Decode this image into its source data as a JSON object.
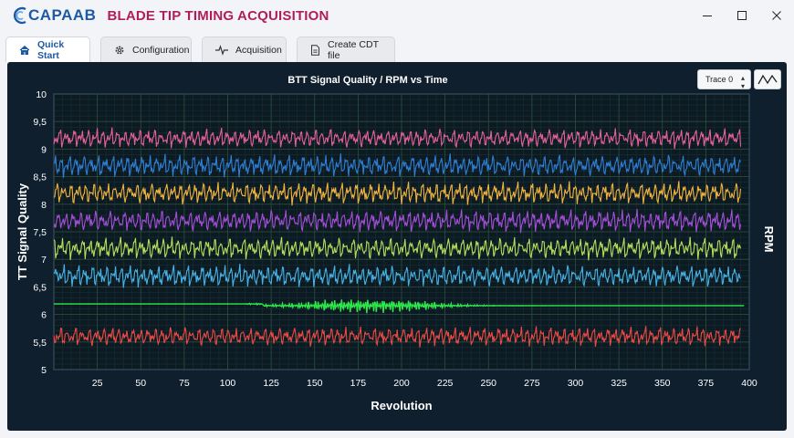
{
  "app": {
    "logo_text": "CAPAAB",
    "title": "BLADE TIP TIMING ACQUISITION"
  },
  "window_controls": [
    "minimize-icon",
    "maximize-icon",
    "close-icon"
  ],
  "tabs": [
    {
      "label": "Quick Start",
      "icon": "home-icon",
      "active": true
    },
    {
      "label": "Configuration",
      "icon": "gear-icon",
      "active": false
    },
    {
      "label": "Acquisition",
      "icon": "pulse-icon",
      "active": false
    },
    {
      "label": "Create CDT file",
      "icon": "file-icon",
      "active": false
    }
  ],
  "toolbar": {
    "trace_select_value": "Trace 0",
    "waveform_button_icon": "waveform-icon"
  },
  "colors": {
    "panel_bg": "#0f1f2e",
    "accent": "#1d5aa3",
    "title_accent": "#b01e5a"
  },
  "chart_data": {
    "type": "line",
    "title": "BTT Signal Quality / RPM vs Time",
    "xlabel": "Revolution",
    "ylabel": "TT Signal Quality",
    "y2label": "RPM",
    "xlim": [
      0,
      400
    ],
    "ylim": [
      5,
      10
    ],
    "xticks": [
      25,
      50,
      75,
      100,
      125,
      150,
      175,
      200,
      225,
      250,
      275,
      300,
      325,
      350,
      375,
      400
    ],
    "xtick_labels": [
      "25",
      "50",
      "75",
      "100",
      "125",
      "150",
      "175",
      "200",
      "225",
      "250",
      "275",
      "300",
      "325",
      "350",
      "375",
      "400"
    ],
    "yticks": [
      5,
      5.5,
      6,
      6.5,
      7,
      7.5,
      8,
      8.5,
      9,
      9.5,
      10
    ],
    "ytick_labels": [
      "5",
      "5,5",
      "6",
      "6,5",
      "7",
      "7,5",
      "8",
      "8,5",
      "9",
      "9,5",
      "10"
    ],
    "grid": true,
    "legend": "none",
    "series": [
      {
        "color": "#e8609a",
        "center": 9.2,
        "amplitude": 0.15,
        "x_end": 395
      },
      {
        "color": "#2e7fd6",
        "center": 8.7,
        "amplitude": 0.17,
        "x_end": 395
      },
      {
        "color": "#f2b43c",
        "center": 8.2,
        "amplitude": 0.17,
        "x_end": 395
      },
      {
        "color": "#a44fd8",
        "center": 7.7,
        "amplitude": 0.17,
        "x_end": 395
      },
      {
        "color": "#b6de5a",
        "center": 7.2,
        "amplitude": 0.17,
        "x_end": 395
      },
      {
        "color": "#46b3e6",
        "center": 6.7,
        "amplitude": 0.17,
        "x_end": 395
      },
      {
        "color": "#2ee84a",
        "center": 6.2,
        "amplitude": 0.0,
        "x_end": 397
      },
      {
        "color": "#ec4a44",
        "center": 5.6,
        "amplitude": 0.15,
        "x_end": 395
      }
    ]
  }
}
